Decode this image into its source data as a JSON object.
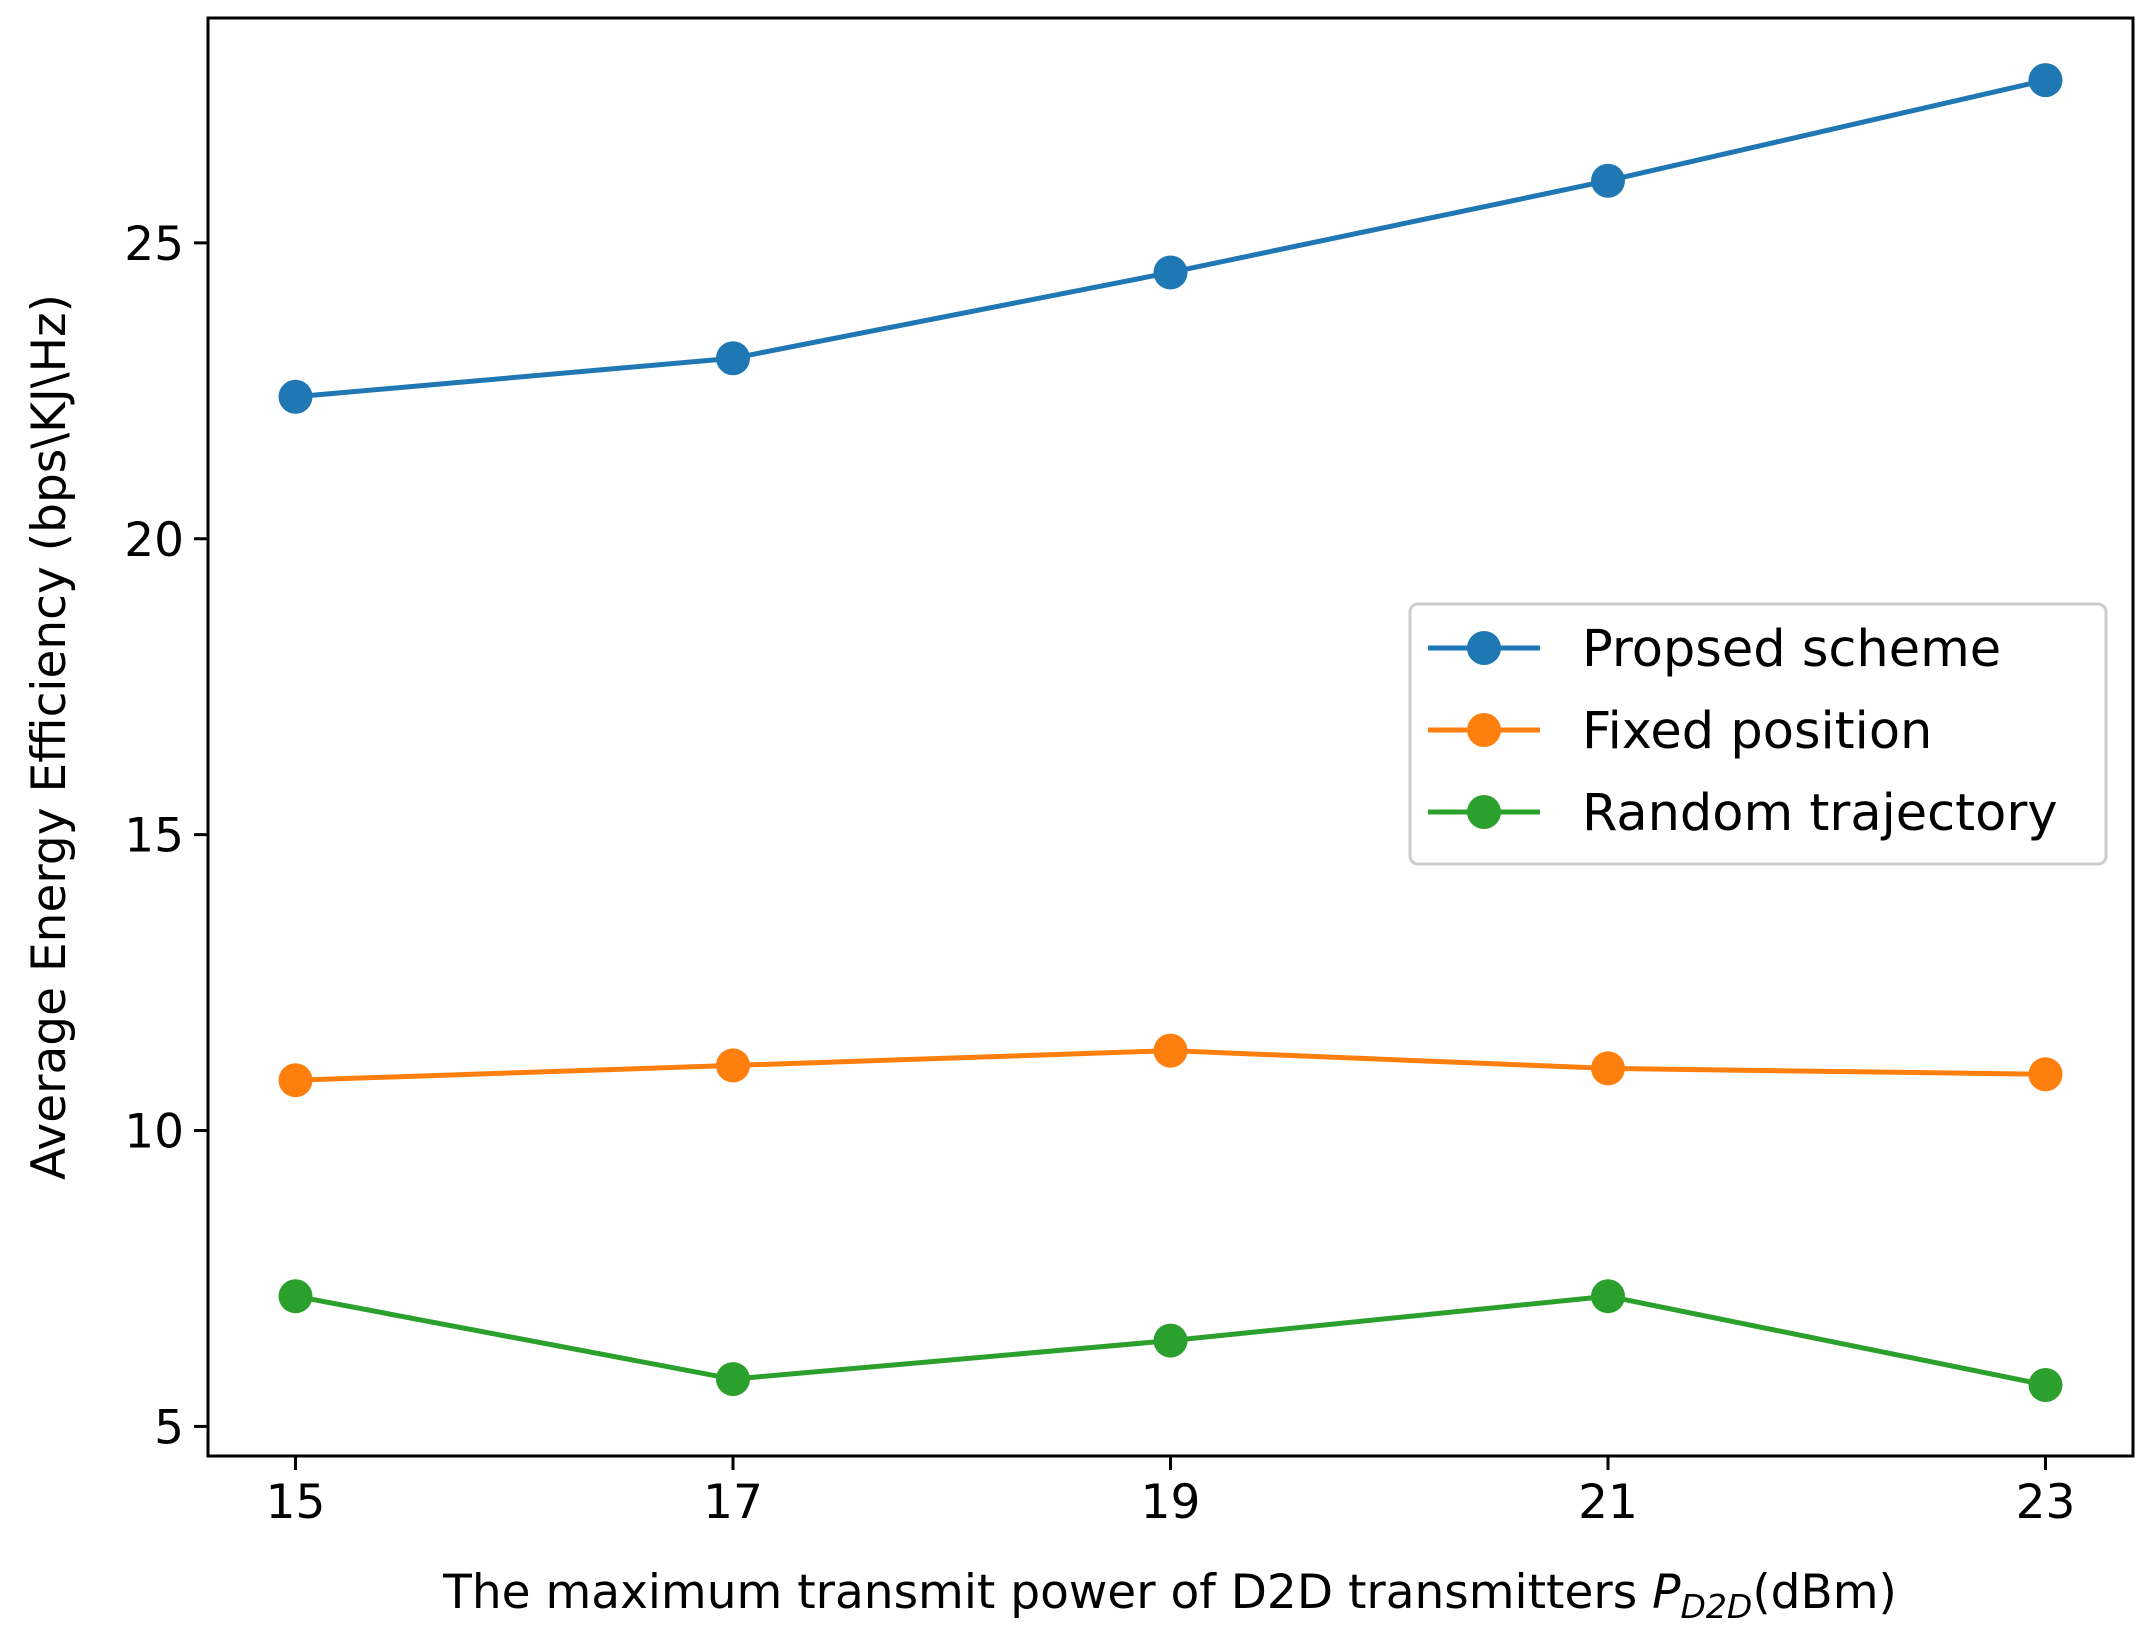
{
  "chart_data": {
    "type": "line",
    "title": "",
    "xlabel": {
      "prefix": "The maximum transmit power of D2D transmitters ",
      "symbol": "P",
      "subscript": "D2D",
      "suffix": "(dBm)"
    },
    "ylabel": "Average  Energy Efficiency (bps\\KJ\\Hz)",
    "x": [
      15,
      17,
      19,
      21,
      23
    ],
    "xticks": [
      "15",
      "17",
      "19",
      "21",
      "23"
    ],
    "yticks": [
      5,
      10,
      15,
      20,
      25
    ],
    "xlim": [
      14.6,
      23.4
    ],
    "ylim": [
      4.5,
      28.8
    ],
    "grid": false,
    "legend_position": "center-right",
    "series": [
      {
        "name": "Propsed scheme",
        "color": "#1f77b4",
        "values": [
          22.4,
          23.05,
          24.5,
          26.05,
          27.75
        ]
      },
      {
        "name": "Fixed position",
        "color": "#ff7f0e",
        "values": [
          10.85,
          11.1,
          11.35,
          11.05,
          10.95
        ]
      },
      {
        "name": "Random trajectory",
        "color": "#2ca02c",
        "values": [
          7.2,
          5.8,
          6.45,
          7.2,
          5.7
        ]
      }
    ]
  }
}
